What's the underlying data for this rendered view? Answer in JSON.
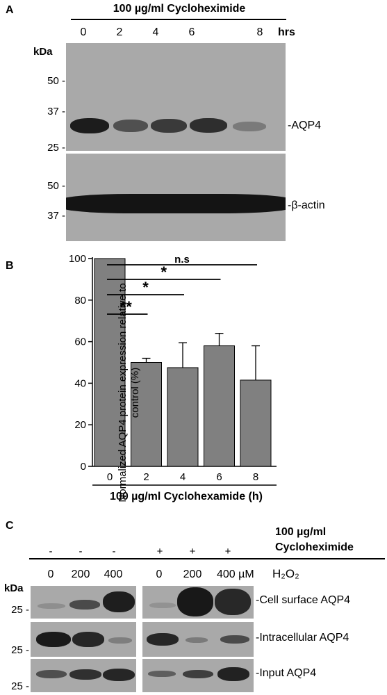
{
  "panel_a": {
    "label": "A",
    "treatment_header": "100 µg/ml  Cycloheximide",
    "time_points": [
      "0",
      "2",
      "4",
      "6",
      "8"
    ],
    "time_unit": "hrs",
    "kda_label": "kDa",
    "top_markers": [
      "50 -",
      "37 -",
      "25 -"
    ],
    "bottom_markers": [
      "50 -",
      "37 -"
    ],
    "band_label_top": "-AQP4",
    "band_label_bottom": "-β-actin"
  },
  "panel_b": {
    "label": "B",
    "significance": [
      "**",
      "*",
      "*",
      "n.s"
    ]
  },
  "panel_c": {
    "label": "C",
    "chx_header_line1": "100 µg/ml",
    "chx_header_line2": "Cycloheximide",
    "chx_signs": [
      "-",
      "-",
      "-",
      "+",
      "+",
      "+"
    ],
    "doses": [
      "0",
      "200",
      "400",
      "0",
      "200",
      "400 µM"
    ],
    "h2o2_label": "H₂O₂",
    "kda_label": "kDa",
    "markers": [
      "25 -",
      "25 -",
      "25 -"
    ],
    "row_labels": [
      "-Cell surface AQP4",
      "-Intracellular AQP4",
      "-Input AQP4"
    ]
  },
  "chart_data": {
    "type": "bar",
    "categories": [
      "0",
      "2",
      "4",
      "6",
      "8"
    ],
    "values": [
      100,
      50,
      47.5,
      58,
      41.5
    ],
    "errors": [
      0,
      2,
      12,
      6,
      16.5
    ],
    "ylabel": "Normalized AQP4 protein expression relative to control (%)",
    "xlabel": "100 µg/ml Cyclohexamide (h)",
    "ylim": [
      0,
      100
    ],
    "yticks": [
      "0",
      "20",
      "40",
      "60",
      "80",
      "100"
    ],
    "bar_color": "#808080",
    "grid": false
  }
}
